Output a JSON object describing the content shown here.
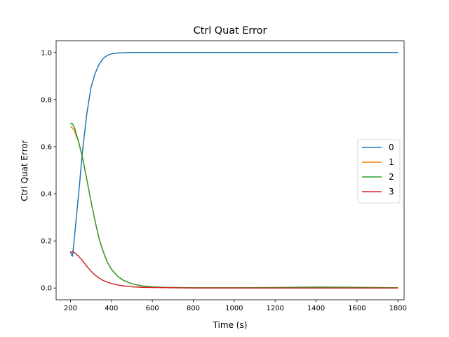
{
  "chart_data": {
    "type": "line",
    "title": "Ctrl Quat Error",
    "xlabel": "Time (s)",
    "ylabel": "Ctrl Quat Error",
    "xlim": [
      130,
      1830
    ],
    "ylim": [
      -0.05,
      1.05
    ],
    "xticks": [
      200,
      400,
      600,
      800,
      1000,
      1200,
      1400,
      1600,
      1800
    ],
    "yticks": [
      0.0,
      0.2,
      0.4,
      0.6,
      0.8,
      1.0
    ],
    "grid": false,
    "legend": "center-right",
    "series": [
      {
        "name": "0",
        "color": "#1f77b4",
        "x": [
          200,
          205,
          210,
          220,
          240,
          260,
          280,
          300,
          320,
          340,
          360,
          380,
          400,
          430,
          460,
          500,
          550,
          600,
          700,
          800,
          1000,
          1200,
          1400,
          1600,
          1800
        ],
        "y": [
          0.155,
          0.14,
          0.135,
          0.22,
          0.4,
          0.59,
          0.74,
          0.85,
          0.91,
          0.95,
          0.975,
          0.988,
          0.994,
          0.998,
          0.999,
          1.0,
          1.0,
          1.0,
          1.0,
          1.0,
          1.0,
          1.0,
          1.0,
          1.0,
          1.0
        ]
      },
      {
        "name": "1",
        "color": "#ff7f0e",
        "x": [
          200,
          210,
          220,
          240,
          260,
          280,
          300,
          320,
          340,
          360,
          380,
          400,
          430,
          460,
          500,
          550,
          600,
          650,
          700,
          800,
          1000,
          1200,
          1400,
          1600,
          1800
        ],
        "y": [
          0.685,
          0.68,
          0.665,
          0.62,
          0.55,
          0.46,
          0.37,
          0.285,
          0.21,
          0.155,
          0.11,
          0.08,
          0.05,
          0.032,
          0.018,
          0.009,
          0.005,
          0.003,
          0.002,
          0.001,
          0.001,
          0.001,
          0.002,
          0.002,
          0.001
        ]
      },
      {
        "name": "2",
        "color": "#2ca02c",
        "x": [
          200,
          205,
          210,
          220,
          240,
          260,
          280,
          300,
          320,
          340,
          360,
          380,
          400,
          430,
          460,
          500,
          550,
          600,
          650,
          700,
          800,
          1000,
          1200,
          1400,
          1600,
          1800
        ],
        "y": [
          0.695,
          0.7,
          0.697,
          0.68,
          0.62,
          0.55,
          0.46,
          0.37,
          0.285,
          0.21,
          0.155,
          0.11,
          0.08,
          0.05,
          0.032,
          0.018,
          0.009,
          0.005,
          0.003,
          0.002,
          0.001,
          0.001,
          0.002,
          0.004,
          0.003,
          0.001
        ]
      },
      {
        "name": "3",
        "color": "#d62728",
        "x": [
          200,
          210,
          220,
          240,
          260,
          280,
          300,
          320,
          340,
          360,
          380,
          400,
          430,
          460,
          500,
          550,
          600,
          700,
          800,
          1000,
          1200,
          1400,
          1600,
          1800
        ],
        "y": [
          0.15,
          0.155,
          0.15,
          0.135,
          0.115,
          0.092,
          0.072,
          0.055,
          0.042,
          0.032,
          0.025,
          0.019,
          0.013,
          0.009,
          0.005,
          0.003,
          0.002,
          0.001,
          0.0,
          0.0,
          0.0,
          0.0,
          0.0,
          0.0
        ]
      }
    ]
  }
}
